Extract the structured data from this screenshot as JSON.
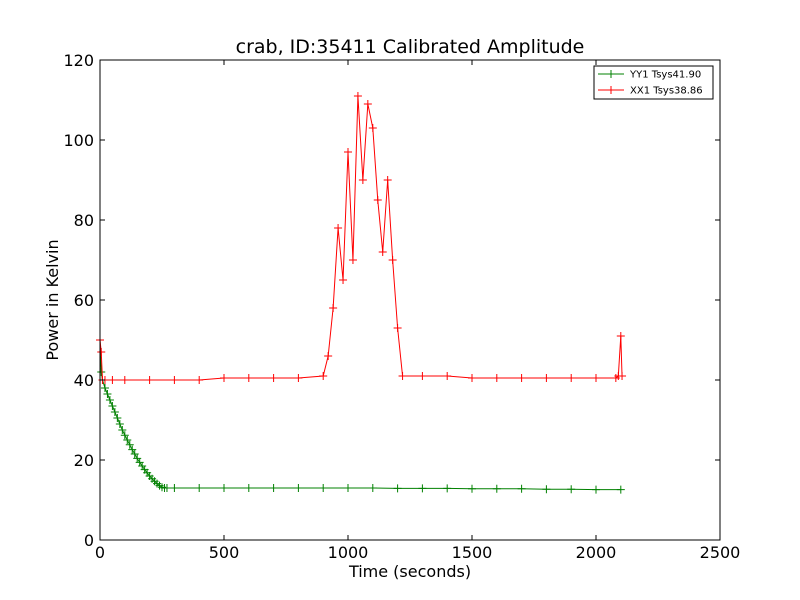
{
  "chart_data": {
    "type": "line",
    "title": "crab, ID:35411 Calibrated Amplitude",
    "xlabel": "Time (seconds)",
    "ylabel": "Power in Kelvin",
    "xlim": [
      0,
      2500
    ],
    "ylim": [
      0,
      120
    ],
    "xticks": [
      0,
      500,
      1000,
      1500,
      2000,
      2500
    ],
    "yticks": [
      0,
      20,
      40,
      60,
      80,
      100,
      120
    ],
    "grid": false,
    "legend_position": "top-right",
    "marker": "+",
    "series": [
      {
        "name": "YY1 Tsys41.90",
        "color": "#008000",
        "x": [
          0,
          5,
          10,
          20,
          30,
          40,
          50,
          60,
          70,
          80,
          90,
          100,
          110,
          120,
          130,
          140,
          150,
          160,
          170,
          180,
          190,
          200,
          210,
          220,
          230,
          240,
          250,
          260,
          270,
          300,
          400,
          500,
          600,
          700,
          800,
          900,
          1000,
          1100,
          1200,
          1300,
          1400,
          1500,
          1600,
          1700,
          1800,
          1900,
          2000,
          2100
        ],
        "y": [
          50,
          42,
          40,
          38,
          36.5,
          35,
          33.5,
          32,
          30.5,
          29,
          27.5,
          26.2,
          25,
          23.8,
          22.6,
          21.5,
          20.4,
          19.4,
          18.5,
          17.6,
          16.8,
          16,
          15.3,
          14.7,
          14.1,
          13.6,
          13.2,
          13,
          13,
          13,
          13,
          13,
          13,
          13,
          13,
          13,
          13,
          13,
          12.9,
          12.9,
          12.9,
          12.8,
          12.8,
          12.8,
          12.7,
          12.7,
          12.6,
          12.6
        ]
      },
      {
        "name": "XX1 Tsys38.86",
        "color": "#ff0000",
        "x": [
          0,
          5,
          10,
          20,
          50,
          100,
          200,
          300,
          400,
          500,
          600,
          700,
          800,
          900,
          920,
          940,
          960,
          980,
          1000,
          1020,
          1040,
          1060,
          1080,
          1100,
          1120,
          1140,
          1160,
          1180,
          1200,
          1220,
          1300,
          1400,
          1500,
          1600,
          1700,
          1800,
          1900,
          2000,
          2080,
          2090,
          2100,
          2105
        ],
        "y": [
          50,
          47,
          40,
          40,
          40,
          40,
          40,
          40,
          40,
          40.5,
          40.5,
          40.5,
          40.5,
          41,
          46,
          58,
          78,
          65,
          97,
          70,
          111,
          90,
          109,
          103,
          85,
          72,
          90,
          70,
          53,
          41,
          41,
          41,
          40.5,
          40.5,
          40.5,
          40.5,
          40.5,
          40.5,
          40.5,
          41,
          51,
          41
        ]
      }
    ]
  }
}
